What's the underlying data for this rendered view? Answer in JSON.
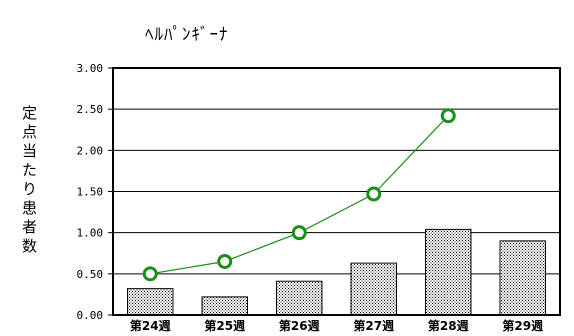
{
  "chart_data": {
    "type": "bar+line",
    "title": "ﾍﾙﾊﾟﾝｷﾞｰﾅ",
    "ylabel": "定点当たり患者数",
    "xlabel": "",
    "ylim": [
      0,
      3.0
    ],
    "yticks": [
      "0.00",
      "0.50",
      "1.00",
      "1.50",
      "2.00",
      "2.50",
      "3.00"
    ],
    "categories": [
      "第24週",
      "第25週",
      "第26週",
      "第27週",
      "第28週",
      "第29週"
    ],
    "series": [
      {
        "type": "bar",
        "values": [
          0.32,
          0.22,
          0.41,
          0.63,
          1.04,
          0.9
        ],
        "fill_pattern": "dotted"
      },
      {
        "type": "line",
        "values": [
          0.5,
          0.65,
          1.0,
          1.47,
          2.42,
          null
        ],
        "color": "#1a8f1a",
        "marker_color": "#1a8f1a"
      }
    ],
    "grid": true,
    "legend": "none"
  }
}
